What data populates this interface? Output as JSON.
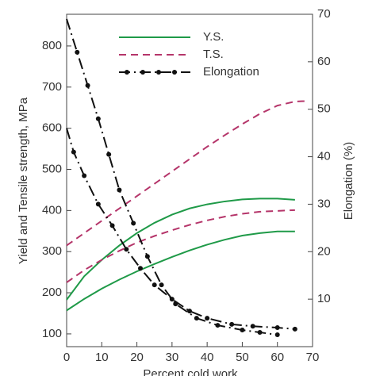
{
  "chart_data": {
    "type": "line",
    "xlabel": "Percent cold work",
    "ylabel": "Yield and Tensile strength, MPa",
    "y2label": "Elongation (%)",
    "xlim": [
      0,
      70
    ],
    "xticks": [
      0,
      10,
      20,
      30,
      40,
      50,
      60,
      70
    ],
    "ylim": [
      69,
      877
    ],
    "yticks": [
      100,
      200,
      300,
      400,
      500,
      600,
      700,
      800
    ],
    "y2lim": [
      0,
      70
    ],
    "y2ticks": [
      10,
      20,
      30,
      40,
      50,
      60,
      70
    ],
    "legend": "top",
    "series": [
      {
        "name": "Y.S.",
        "color": "#1f9a48",
        "style": "solid",
        "axis": "y",
        "curves": [
          {
            "x": [
              0,
              5,
              10,
              15,
              20,
              25,
              30,
              35,
              40,
              45,
              50,
              55,
              60,
              65
            ],
            "values": [
              183,
              240,
              280,
              315,
              345,
              370,
              390,
              405,
              415,
              422,
              427,
              429,
              429,
              426
            ]
          },
          {
            "x": [
              0,
              5,
              10,
              15,
              20,
              25,
              30,
              35,
              40,
              45,
              50,
              55,
              60,
              65
            ],
            "values": [
              157,
              185,
              210,
              232,
              252,
              270,
              287,
              303,
              317,
              329,
              339,
              345,
              349,
              349
            ]
          }
        ]
      },
      {
        "name": "T.S.",
        "color": "#b5356a",
        "style": "dashed",
        "axis": "y",
        "curves": [
          {
            "x": [
              0,
              5,
              10,
              15,
              20,
              25,
              30,
              35,
              40,
              45,
              50,
              55,
              60,
              65,
              68
            ],
            "values": [
              315,
              345,
              375,
              405,
              435,
              465,
              495,
              525,
              555,
              583,
              610,
              635,
              655,
              665,
              666
            ]
          },
          {
            "x": [
              0,
              5,
              10,
              15,
              20,
              25,
              30,
              35,
              40,
              45,
              50,
              55,
              60,
              65
            ],
            "values": [
              225,
              255,
              280,
              302,
              322,
              338,
              352,
              365,
              376,
              385,
              392,
              397,
              399,
              401
            ]
          }
        ]
      },
      {
        "name": "Elongation",
        "color": "#111111",
        "style": "dashdot",
        "axis": "y2",
        "curves": [
          {
            "x": [
              0,
              3,
              6,
              9,
              12,
              15,
              19,
              23,
              27,
              31,
              37,
              43,
              50,
              55,
              60
            ],
            "values": [
              69,
              62,
              55,
              48,
              40.5,
              33,
              26,
              19,
              13,
              9,
              6,
              4.5,
              3.5,
              3,
              2.5
            ]
          },
          {
            "x": [
              0,
              2,
              5,
              9,
              13,
              17,
              21,
              25,
              30,
              35,
              40,
              47,
              53,
              60,
              65
            ],
            "values": [
              46,
              41,
              36,
              30,
              25.5,
              20.5,
              16.5,
              13,
              10,
              7.5,
              6,
              4.7,
              4.3,
              4,
              3.7
            ]
          }
        ]
      }
    ]
  }
}
